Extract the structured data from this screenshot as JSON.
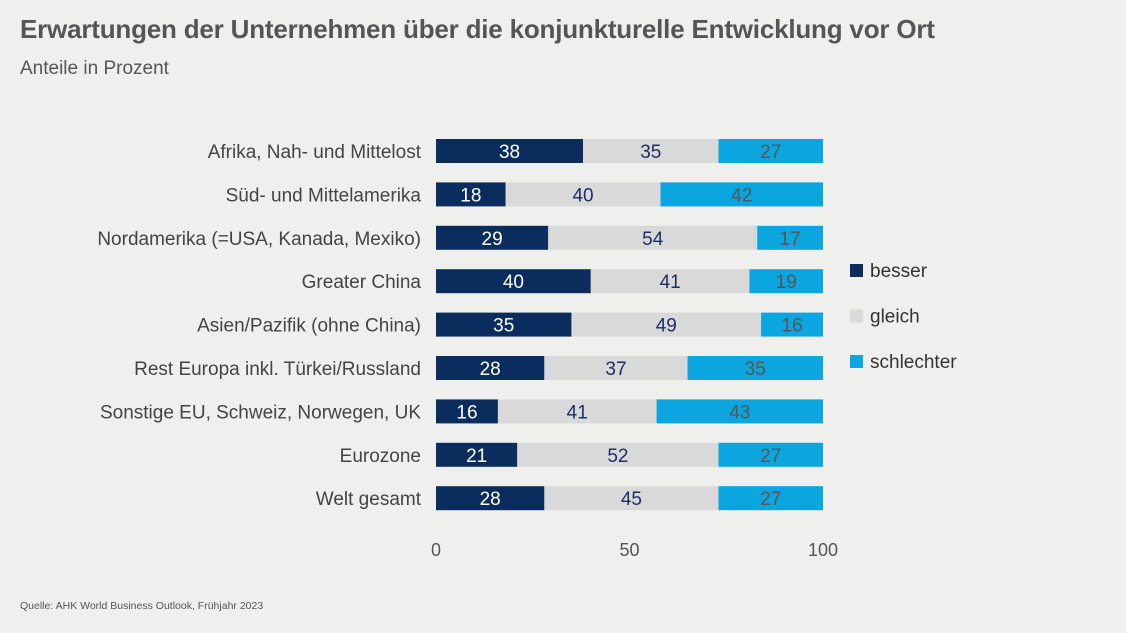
{
  "title": "Erwartungen der Unternehmen über die konjunkturelle Entwicklung vor Ort",
  "subtitle": "Anteile in Prozent",
  "source": "Quelle: AHK World Business Outlook, Frühjahr 2023",
  "chart_data": {
    "type": "bar",
    "orientation": "horizontal",
    "stacked": true,
    "categories": [
      "Afrika, Nah- und Mittelost",
      "Süd- und Mittelamerika",
      "Nordamerika (=USA, Kanada, Mexiko)",
      "Greater China",
      "Asien/Pazifik (ohne China)",
      "Rest Europa inkl. Türkei/Russland",
      "Sonstige EU, Schweiz, Norwegen, UK",
      "Eurozone",
      "Welt gesamt"
    ],
    "series": [
      {
        "name": "besser",
        "color": "#0b2d5e",
        "label_color": "#ffffff",
        "values": [
          38,
          18,
          29,
          40,
          35,
          28,
          16,
          21,
          28
        ]
      },
      {
        "name": "gleich",
        "color": "#d9d9d9",
        "label_color": "#1f2d66",
        "values": [
          35,
          40,
          54,
          41,
          49,
          37,
          41,
          52,
          45
        ]
      },
      {
        "name": "schlechter",
        "color": "#0ba5e0",
        "label_color": "#555555",
        "values": [
          27,
          42,
          17,
          19,
          16,
          35,
          43,
          27,
          27
        ]
      }
    ],
    "xlim": [
      0,
      100
    ],
    "xticks": [
      0,
      50,
      100
    ],
    "legend": "right",
    "grid": false
  }
}
